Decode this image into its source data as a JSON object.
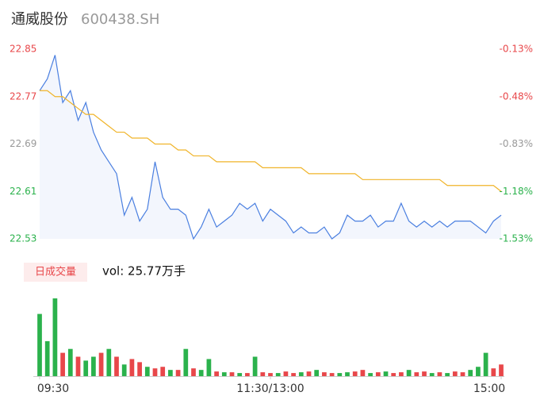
{
  "chart_data": {
    "type": "intraday",
    "title": "通威股份",
    "code": "600438.SH",
    "x": [
      0,
      4,
      8,
      12,
      16,
      20,
      24,
      28,
      32,
      36,
      40,
      44,
      48,
      52,
      56,
      60,
      64,
      68,
      72,
      76,
      80,
      84,
      88,
      92,
      96,
      100,
      104,
      108,
      112,
      116,
      120,
      124,
      128,
      132,
      136,
      140,
      144,
      148,
      152,
      156,
      160,
      164,
      168,
      172,
      176,
      180,
      184,
      188,
      192,
      196,
      200,
      204,
      208,
      212,
      216,
      220,
      224,
      228,
      232,
      236,
      240
    ],
    "xlim": [
      0,
      240
    ],
    "xticks": [
      {
        "value": 0,
        "label": "09:30"
      },
      {
        "value": 120,
        "label": "11:30/13:00"
      },
      {
        "value": 240,
        "label": "15:00"
      }
    ],
    "series": [
      {
        "name": "price",
        "color": "#4a7fe0",
        "values": [
          22.78,
          22.8,
          22.84,
          22.76,
          22.78,
          22.73,
          22.76,
          22.71,
          22.68,
          22.66,
          22.64,
          22.57,
          22.6,
          22.56,
          22.58,
          22.66,
          22.6,
          22.58,
          22.58,
          22.57,
          22.53,
          22.55,
          22.58,
          22.55,
          22.56,
          22.57,
          22.59,
          22.58,
          22.59,
          22.56,
          22.58,
          22.57,
          22.56,
          22.54,
          22.55,
          22.54,
          22.54,
          22.55,
          22.53,
          22.54,
          22.57,
          22.56,
          22.56,
          22.57,
          22.55,
          22.56,
          22.56,
          22.59,
          22.56,
          22.55,
          22.56,
          22.55,
          22.56,
          22.55,
          22.56,
          22.56,
          22.56,
          22.55,
          22.54,
          22.56,
          22.57
        ]
      },
      {
        "name": "average",
        "color": "#f0b429",
        "values": [
          22.78,
          22.78,
          22.77,
          22.77,
          22.76,
          22.75,
          22.74,
          22.74,
          22.73,
          22.72,
          22.71,
          22.71,
          22.7,
          22.7,
          22.7,
          22.69,
          22.69,
          22.69,
          22.68,
          22.68,
          22.67,
          22.67,
          22.67,
          22.66,
          22.66,
          22.66,
          22.66,
          22.66,
          22.66,
          22.65,
          22.65,
          22.65,
          22.65,
          22.65,
          22.65,
          22.64,
          22.64,
          22.64,
          22.64,
          22.64,
          22.64,
          22.64,
          22.63,
          22.63,
          22.63,
          22.63,
          22.63,
          22.63,
          22.63,
          22.63,
          22.63,
          22.63,
          22.63,
          22.62,
          22.62,
          22.62,
          22.62,
          22.62,
          22.62,
          22.62,
          22.61
        ]
      }
    ],
    "ylim": [
      22.53,
      22.85
    ],
    "yticks": [
      22.85,
      22.77,
      22.69,
      22.61,
      22.53
    ],
    "ytick_colors": [
      "#e8474a",
      "#e8474a",
      "#999999",
      "#2bb24c",
      "#2bb24c"
    ],
    "y2lim": [
      -1.53,
      -0.13
    ],
    "y2ticks": [
      {
        "value": -0.13,
        "label": "-0.13%"
      },
      {
        "value": -0.48,
        "label": "-0.48%"
      },
      {
        "value": -0.83,
        "label": "-0.83%"
      },
      {
        "value": -1.18,
        "label": "-1.18%"
      },
      {
        "value": -1.53,
        "label": "-1.53%"
      }
    ],
    "y2tick_colors": [
      "#e8474a",
      "#e8474a",
      "#999999",
      "#2bb24c",
      "#2bb24c"
    ],
    "area_color": "#f3f6fd",
    "volume": {
      "label": "日成交量",
      "summary": "vol: 25.77万手",
      "vlim": [
        0,
        100
      ],
      "values": [
        80,
        45,
        100,
        30,
        35,
        25,
        20,
        25,
        30,
        35,
        25,
        15,
        22,
        18,
        12,
        10,
        12,
        8,
        8,
        35,
        10,
        8,
        22,
        6,
        5,
        5,
        4,
        4,
        25,
        5,
        4,
        4,
        6,
        4,
        5,
        6,
        8,
        5,
        4,
        4,
        5,
        6,
        8,
        4,
        5,
        6,
        4,
        5,
        8,
        5,
        6,
        4,
        5,
        4,
        6,
        5,
        8,
        12,
        30,
        10,
        15
      ],
      "colors": [
        "#2bb24c",
        "#2bb24c",
        "#2bb24c",
        "#e8474a",
        "#2bb24c",
        "#e8474a",
        "#2bb24c",
        "#2bb24c",
        "#e8474a",
        "#2bb24c",
        "#e8474a",
        "#2bb24c",
        "#e8474a",
        "#e8474a",
        "#2bb24c",
        "#e8474a",
        "#e8474a",
        "#2bb24c",
        "#e8474a",
        "#2bb24c",
        "#e8474a",
        "#2bb24c",
        "#2bb24c",
        "#e8474a",
        "#2bb24c",
        "#e8474a",
        "#2bb24c",
        "#e8474a",
        "#2bb24c",
        "#e8474a",
        "#e8474a",
        "#2bb24c",
        "#e8474a",
        "#e8474a",
        "#2bb24c",
        "#e8474a",
        "#2bb24c",
        "#e8474a",
        "#e8474a",
        "#2bb24c",
        "#2bb24c",
        "#e8474a",
        "#e8474a",
        "#2bb24c",
        "#e8474a",
        "#2bb24c",
        "#e8474a",
        "#e8474a",
        "#2bb24c",
        "#e8474a",
        "#e8474a",
        "#2bb24c",
        "#e8474a",
        "#2bb24c",
        "#e8474a",
        "#e8474a",
        "#2bb24c",
        "#2bb24c",
        "#2bb24c",
        "#e8474a",
        "#e8474a"
      ]
    }
  }
}
